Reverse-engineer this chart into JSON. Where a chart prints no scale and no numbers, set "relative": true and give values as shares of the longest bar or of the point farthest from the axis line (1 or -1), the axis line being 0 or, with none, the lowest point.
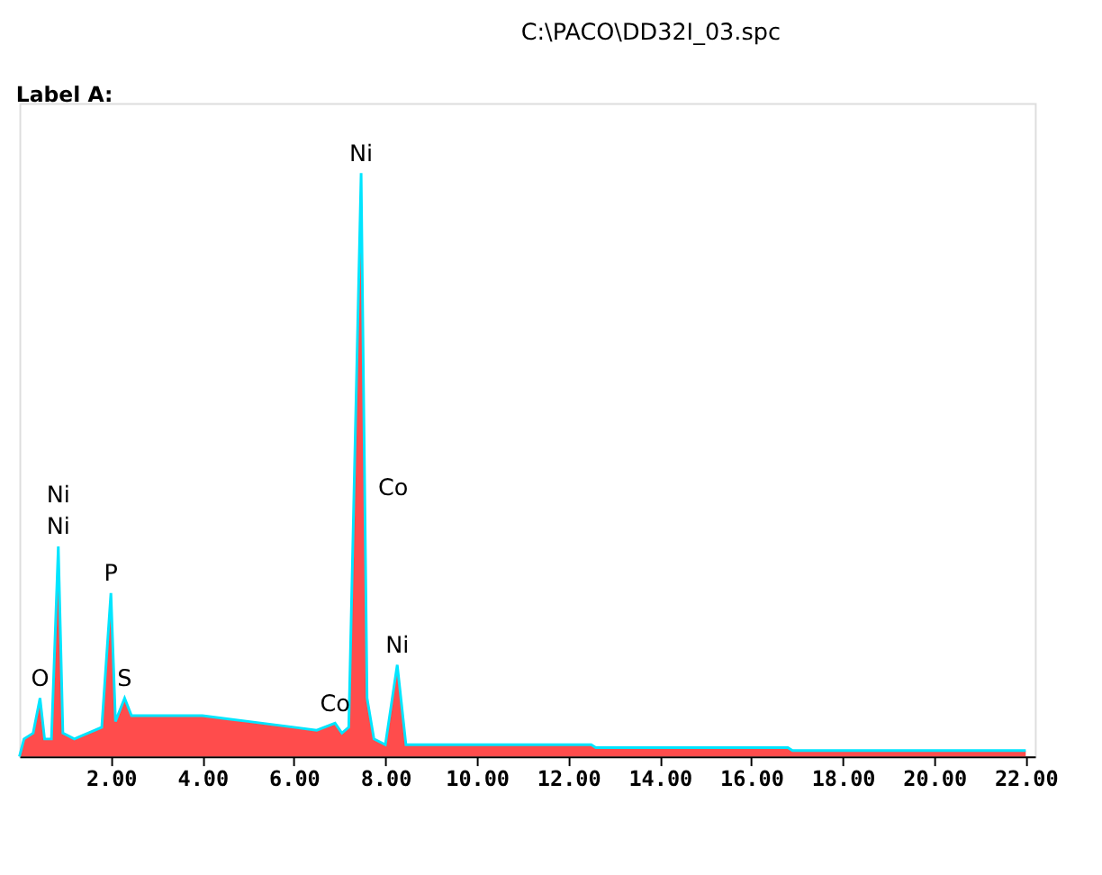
{
  "chart_data": {
    "type": "area",
    "title": "C:\\PACO\\DD32I_03.spc",
    "relative": true,
    "x": [
      0,
      0.1,
      0.3,
      0.45,
      0.55,
      0.7,
      0.85,
      0.95,
      1.2,
      1.5,
      1.8,
      2.0,
      2.1,
      2.3,
      2.45,
      3.0,
      4.0,
      5.0,
      6.0,
      6.5,
      6.9,
      7.05,
      7.2,
      7.47,
      7.6,
      7.75,
      8.0,
      8.26,
      8.45,
      9.0,
      12.5,
      12.6,
      16.8,
      16.9,
      22.0
    ],
    "series": [
      {
        "color": "#ff0000",
        "values": [
          0,
          0.03,
          0.04,
          0.1,
          0.03,
          0.03,
          0.36,
          0.04,
          0.03,
          0.04,
          0.05,
          0.28,
          0.06,
          0.1,
          0.07,
          0.07,
          0.07,
          0.06,
          0.05,
          0.045,
          0.057,
          0.04,
          0.05,
          1.0,
          0.1,
          0.03,
          0.02,
          0.157,
          0.02,
          0.02,
          0.02,
          0.015,
          0.015,
          0.01,
          0.01
        ]
      }
    ],
    "xlim": [
      0,
      22.2
    ],
    "xticks": [
      {
        "value": 2,
        "label": "2.00"
      },
      {
        "value": 4,
        "label": "4.00"
      },
      {
        "value": 6,
        "label": "6.00"
      },
      {
        "value": 8,
        "label": "8.00"
      },
      {
        "value": 10,
        "label": "10.00"
      },
      {
        "value": 12,
        "label": "12.00"
      },
      {
        "value": 14,
        "label": "14.00"
      },
      {
        "value": 16,
        "label": "16.00"
      },
      {
        "value": 18,
        "label": "18.00"
      },
      {
        "value": 20,
        "label": "20.00"
      },
      {
        "value": 22,
        "label": "22.00"
      }
    ],
    "grid": false,
    "tick_labels": "x",
    "annotations": [
      "Label A:",
      {
        "text": "O",
        "x": 0.45,
        "y": 0.1
      },
      {
        "text": "Ni",
        "x": 0.85,
        "y": 0.36
      },
      {
        "text": "Ni",
        "x": 0.85,
        "y": 0.36
      },
      {
        "text": "P",
        "x": 2.0,
        "y": 0.28
      },
      {
        "text": "S",
        "x": 2.3,
        "y": 0.1
      },
      {
        "text": "Co",
        "x": 6.9,
        "y": 0.057
      },
      {
        "text": "Ni",
        "x": 7.47,
        "y": 1.0
      },
      {
        "text": "Co",
        "x": 7.65,
        "y": 0.46
      },
      {
        "text": "Ni",
        "x": 8.26,
        "y": 0.157
      }
    ]
  }
}
